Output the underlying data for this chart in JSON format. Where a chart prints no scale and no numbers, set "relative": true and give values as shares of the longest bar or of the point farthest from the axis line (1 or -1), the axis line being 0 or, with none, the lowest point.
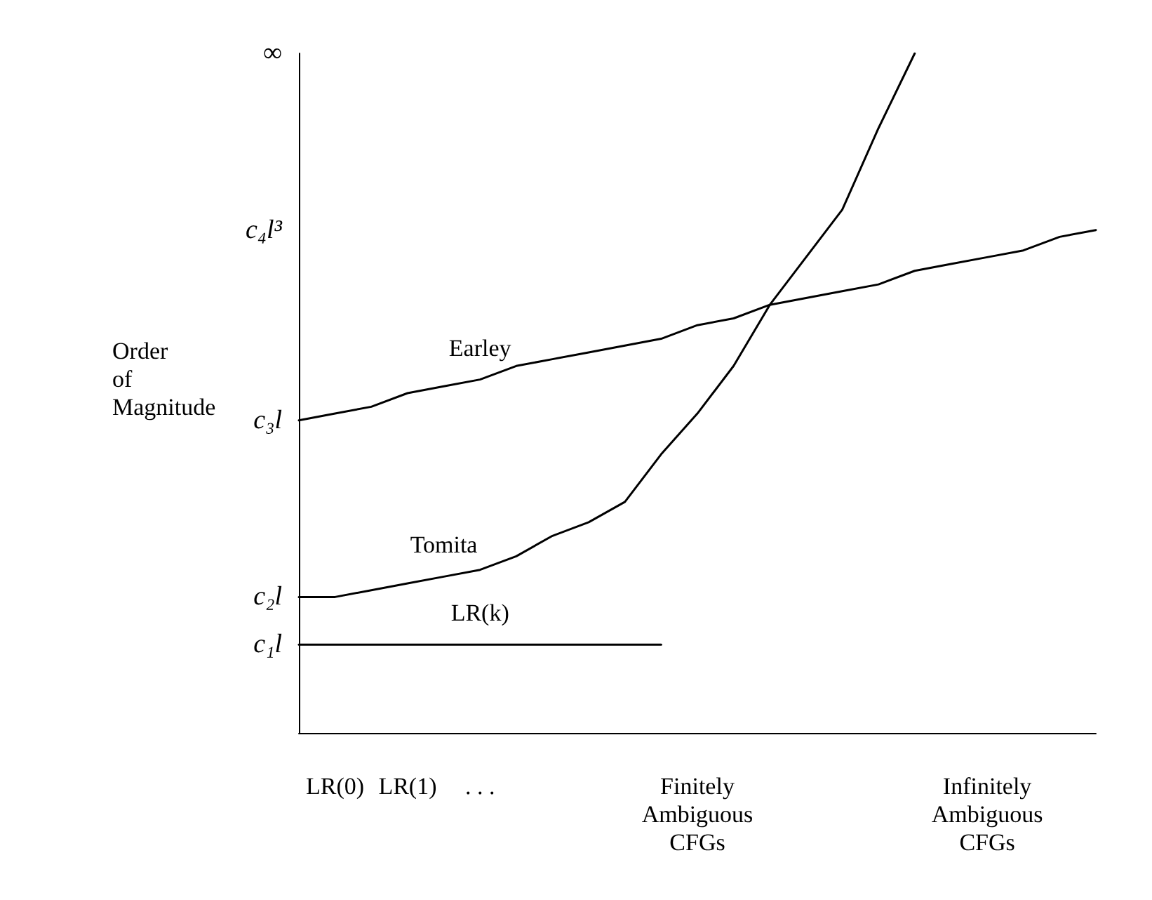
{
  "chart_data": {
    "type": "line",
    "ylabel": "Order\nof\nMagnitude",
    "relative": true,
    "categories": [
      null,
      "LR(0)",
      null,
      "LR(1)",
      null,
      ". . .",
      null,
      null,
      null,
      null,
      null,
      "Finitely\nAmbiguous\nCFGs",
      null,
      null,
      null,
      null,
      null,
      null,
      null,
      "Infinitely\nAmbiguous\nCFGs",
      null,
      null,
      null
    ],
    "annotations": [
      "∞",
      "c₄l³",
      "c₃l",
      "c₂l",
      "c₁l"
    ],
    "series": [
      {
        "name": "Earley",
        "color": "#000000",
        "values": [
          0.46,
          0.47,
          0.48,
          0.5,
          0.51,
          0.52,
          0.54,
          0.55,
          0.56,
          0.57,
          0.58,
          0.6,
          0.61,
          0.63,
          0.64,
          0.65,
          0.66,
          0.68,
          0.69,
          0.7,
          0.71,
          0.73,
          0.74
        ]
      },
      {
        "name": "Tomita",
        "color": "#000000",
        "values": [
          0.2,
          0.2,
          0.21,
          0.22,
          0.23,
          0.24,
          0.26,
          0.29,
          0.31,
          0.34,
          0.41,
          0.47,
          0.54,
          0.63,
          0.7,
          0.77,
          0.89,
          1,
          null,
          null,
          null,
          null,
          null
        ]
      },
      {
        "name": "LR(k)",
        "color": "#000000",
        "values": [
          0.13,
          0.13,
          0.13,
          0.13,
          0.13,
          0.13,
          0.13,
          0.13,
          0.13,
          0.13,
          0.13,
          null,
          null,
          null,
          null,
          null,
          null,
          null,
          null,
          null,
          null,
          null,
          null
        ]
      }
    ],
    "grid": false,
    "legend": false,
    "marker": "none",
    "line_style": "solid"
  }
}
